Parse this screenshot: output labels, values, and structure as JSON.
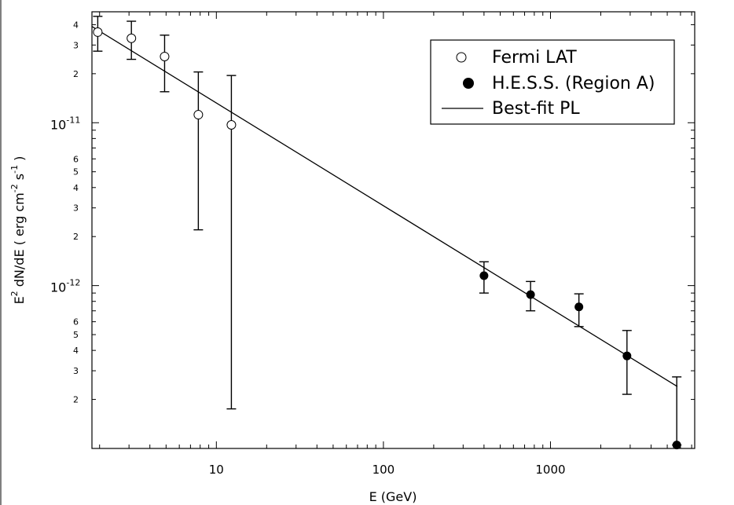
{
  "chart_data": {
    "type": "scatter",
    "title": "",
    "xlabel": "E (GeV)",
    "ylabel": {
      "base": "E",
      "base_sup": "2",
      "main": " dN/dE ( erg cm",
      "cm_sup": "-2",
      "s_text": " s",
      "s_sup": "-1",
      "close": " )"
    },
    "x_scale": "log",
    "y_scale": "log",
    "xlim": [
      1.8,
      7300
    ],
    "ylim": [
      1e-13,
      4.8e-11
    ],
    "grid": false,
    "legend_position": "top-right",
    "x_ticks": [
      {
        "value": 10,
        "label": "10"
      },
      {
        "value": 100,
        "label": "100"
      },
      {
        "value": 1000,
        "label": "1000"
      }
    ],
    "y_ticks": [
      {
        "value": 1e-11,
        "mantissa": "10",
        "exponent": "-11"
      },
      {
        "value": 1e-12,
        "mantissa": "10",
        "exponent": "-12"
      }
    ],
    "y_minor_labels": [
      {
        "value": 4e-11,
        "label": "4"
      },
      {
        "value": 3e-11,
        "label": "3"
      },
      {
        "value": 2e-11,
        "label": "2"
      },
      {
        "value": 6e-12,
        "label": "6"
      },
      {
        "value": 5e-12,
        "label": "5"
      },
      {
        "value": 4e-12,
        "label": "4"
      },
      {
        "value": 3e-12,
        "label": "3"
      },
      {
        "value": 2e-12,
        "label": "2"
      },
      {
        "value": 6e-13,
        "label": "6"
      },
      {
        "value": 5e-13,
        "label": "5"
      },
      {
        "value": 4e-13,
        "label": "4"
      },
      {
        "value": 3e-13,
        "label": "3"
      },
      {
        "value": 2e-13,
        "label": "2"
      }
    ],
    "series": [
      {
        "name": "Fermi LAT",
        "marker": "open-circle",
        "color": "#000000",
        "points": [
          {
            "x": 1.95,
            "y": 3.6e-11,
            "y_low": 2.75e-11,
            "y_high": 4.5e-11
          },
          {
            "x": 3.1,
            "y": 3.3e-11,
            "y_low": 2.45e-11,
            "y_high": 4.2e-11
          },
          {
            "x": 4.9,
            "y": 2.55e-11,
            "y_low": 1.55e-11,
            "y_high": 3.45e-11
          },
          {
            "x": 7.8,
            "y": 1.12e-11,
            "y_low": 2.2e-12,
            "y_high": 2.05e-11
          },
          {
            "x": 12.3,
            "y": 9.7e-12,
            "y_low": 1.75e-13,
            "y_high": 1.95e-11
          }
        ]
      },
      {
        "name": "H.E.S.S. (Region A)",
        "marker": "filled-circle",
        "color": "#000000",
        "points": [
          {
            "x": 400,
            "y": 1.15e-12,
            "y_low": 9e-13,
            "y_high": 1.4e-12
          },
          {
            "x": 760,
            "y": 8.8e-13,
            "y_low": 7e-13,
            "y_high": 1.06e-12
          },
          {
            "x": 1480,
            "y": 7.4e-13,
            "y_low": 5.6e-13,
            "y_high": 8.9e-13
          },
          {
            "x": 2870,
            "y": 3.7e-13,
            "y_low": 2.15e-13,
            "y_high": 5.3e-13
          },
          {
            "x": 5700,
            "y": 1.05e-13,
            "y_low": 1.05e-13,
            "y_high": 2.75e-13
          }
        ]
      },
      {
        "name": "Best-fit PL",
        "marker": "line",
        "color": "#000000",
        "line": {
          "x": [
            1.8,
            5750
          ],
          "y": [
            3.9e-11,
            2.4e-13
          ]
        }
      }
    ]
  }
}
